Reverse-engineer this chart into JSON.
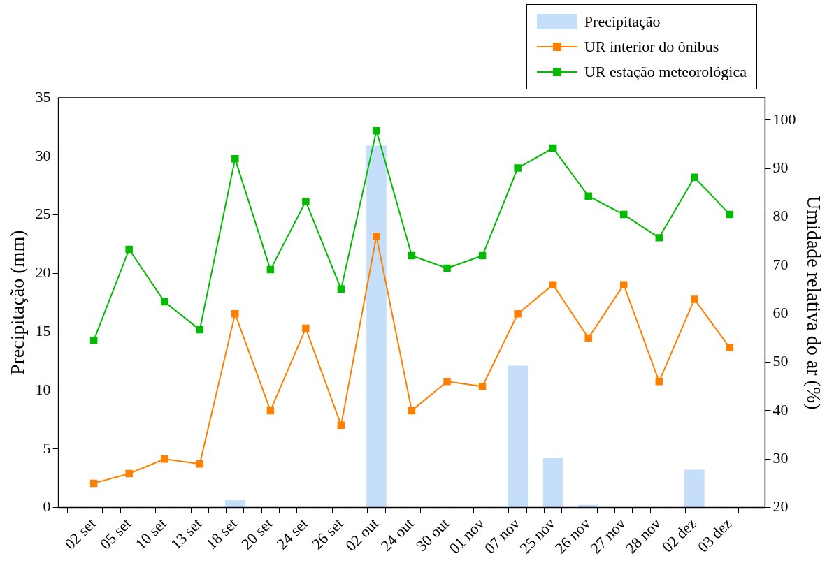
{
  "chart_data": {
    "type": "bar",
    "categories": [
      "02 set",
      "05 set",
      "10 set",
      "13 set",
      "18 set",
      "20 set",
      "24 set",
      "26 set",
      "02 out",
      "24 out",
      "30 out",
      "01 nov",
      "07 nov",
      "25 nov",
      "26 nov",
      "27 nov",
      "28 nov",
      "02 dez",
      "03 dez"
    ],
    "series": [
      {
        "name": "Precipitação",
        "color": "#c5dffb",
        "values": [
          0,
          0,
          0,
          0,
          0.6,
          0,
          0,
          0,
          30.9,
          0,
          0,
          0,
          12.1,
          4.2,
          0.2,
          0,
          0,
          3.2,
          0
        ]
      },
      {
        "name": "UR interior do ônibus",
        "type": "line",
        "axis": "y2",
        "color": "#ff7f00",
        "values": [
          25,
          27,
          30,
          29,
          60,
          40,
          57,
          37,
          76,
          40,
          46,
          45,
          60,
          66,
          55,
          66,
          46,
          63,
          53
        ]
      },
      {
        "name": "UR estação meteorológica",
        "type": "line",
        "axis": "y2",
        "color": "#00bb00",
        "values": [
          54.5,
          73.3,
          62.5,
          56.7,
          92,
          69.1,
          83.2,
          65.1,
          97.8,
          72,
          69.4,
          72,
          90.1,
          94.2,
          84.3,
          80.5,
          75.7,
          88.2,
          80.5
        ]
      }
    ],
    "ylabel": "Precipitação (mm)",
    "y2label": "Umidade relativa do ar (%)",
    "ylim": [
      0,
      35
    ],
    "yticks": [
      0,
      5,
      10,
      15,
      20,
      25,
      30,
      35
    ],
    "y2lim": [
      20,
      104.6
    ],
    "y2ticks": [
      20,
      30,
      40,
      50,
      60,
      70,
      80,
      90,
      100
    ],
    "marker": "square",
    "legend": "top right",
    "grid": false
  }
}
